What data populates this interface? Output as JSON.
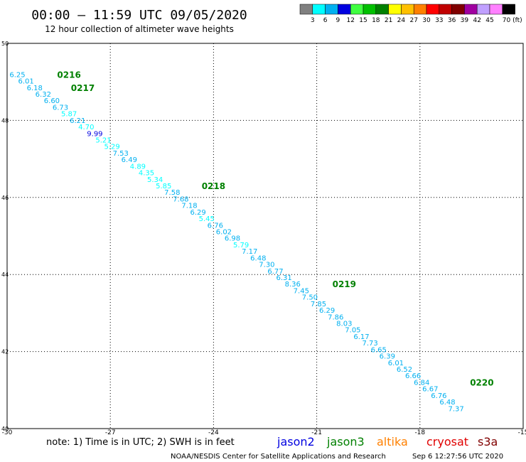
{
  "header": {
    "title": "00:00 – 11:59 UTC 09/05/2020",
    "subtitle": "12 hour collection of altimeter wave heights"
  },
  "legend": {
    "labels": [
      "3",
      "6",
      "9",
      "12",
      "15",
      "18",
      "21",
      "24",
      "27",
      "30",
      "33",
      "36",
      "39",
      "42",
      "45",
      "70 (ft)"
    ],
    "colors": [
      "#808080",
      "#00ffff",
      "#00b0f0",
      "#0000e0",
      "#40ff40",
      "#00c000",
      "#008000",
      "#ffff00",
      "#ffc000",
      "#ff8000",
      "#ff0000",
      "#c00000",
      "#800000",
      "#a000a0",
      "#c0a0ff",
      "#ff80ff",
      "#000000"
    ]
  },
  "footer": {
    "note": "note: 1) Time is in UTC; 2) SWH is in feet",
    "satellites": [
      {
        "name": "jason2",
        "color": "#0000e0"
      },
      {
        "name": "jason3",
        "color": "#008000"
      },
      {
        "name": "altika",
        "color": "#ff8000"
      },
      {
        "name": "cryosat",
        "color": "#e00000"
      },
      {
        "name": "s3a",
        "color": "#800000"
      }
    ],
    "credit": "NOAA/NESDIS Center for Satellite Applications and Research",
    "timestamp": "Sep  6 12:27:56 UTC 2020"
  },
  "chart_data": {
    "type": "scatter",
    "xlim": [
      -30,
      -15
    ],
    "ylim": [
      40,
      50
    ],
    "x_ticks": [
      "-30",
      "-27",
      "-24",
      "-21",
      "-18",
      "-15"
    ],
    "y_ticks": [
      "40",
      "42",
      "44",
      "46",
      "48",
      "50"
    ],
    "grid": true,
    "points": [
      {
        "lon": -29.7,
        "lat": 49.2,
        "v": "6.25",
        "c": "#00b0f0"
      },
      {
        "lon": -29.45,
        "lat": 49.03,
        "v": "6.01",
        "c": "#00b0f0"
      },
      {
        "lon": -29.2,
        "lat": 48.86,
        "v": "6.18",
        "c": "#00b0f0"
      },
      {
        "lon": -28.95,
        "lat": 48.69,
        "v": "6.32",
        "c": "#00b0f0"
      },
      {
        "lon": -28.7,
        "lat": 48.52,
        "v": "6.60",
        "c": "#00b0f0"
      },
      {
        "lon": -28.45,
        "lat": 48.35,
        "v": "6.73",
        "c": "#00b0f0"
      },
      {
        "lon": -28.2,
        "lat": 48.18,
        "v": "5.87",
        "c": "#00ffff"
      },
      {
        "lon": -27.95,
        "lat": 48.01,
        "v": "6.21",
        "c": "#00b0f0"
      },
      {
        "lon": -27.7,
        "lat": 47.84,
        "v": "4.70",
        "c": "#00ffff"
      },
      {
        "lon": -27.45,
        "lat": 47.67,
        "v": "9.99",
        "c": "#0000e0"
      },
      {
        "lon": -27.2,
        "lat": 47.5,
        "v": "5.21",
        "c": "#00ffff"
      },
      {
        "lon": -26.95,
        "lat": 47.33,
        "v": "5.29",
        "c": "#00ffff"
      },
      {
        "lon": -26.7,
        "lat": 47.16,
        "v": "7.53",
        "c": "#00b0f0"
      },
      {
        "lon": -26.45,
        "lat": 46.99,
        "v": "6.49",
        "c": "#00b0f0"
      },
      {
        "lon": -26.2,
        "lat": 46.82,
        "v": "4.89",
        "c": "#00ffff"
      },
      {
        "lon": -25.95,
        "lat": 46.65,
        "v": "4.35",
        "c": "#00ffff"
      },
      {
        "lon": -25.7,
        "lat": 46.48,
        "v": "5.34",
        "c": "#00ffff"
      },
      {
        "lon": -25.45,
        "lat": 46.31,
        "v": "5.85",
        "c": "#00ffff"
      },
      {
        "lon": -25.2,
        "lat": 46.14,
        "v": "7.58",
        "c": "#00b0f0"
      },
      {
        "lon": -24.95,
        "lat": 45.97,
        "v": "7.68",
        "c": "#00b0f0"
      },
      {
        "lon": -24.7,
        "lat": 45.8,
        "v": "7.18",
        "c": "#00b0f0"
      },
      {
        "lon": -24.45,
        "lat": 45.63,
        "v": "6.29",
        "c": "#00b0f0"
      },
      {
        "lon": -24.2,
        "lat": 45.46,
        "v": "5.45",
        "c": "#00ffff"
      },
      {
        "lon": -23.95,
        "lat": 45.29,
        "v": "6.76",
        "c": "#00b0f0"
      },
      {
        "lon": -23.7,
        "lat": 45.12,
        "v": "6.02",
        "c": "#00b0f0"
      },
      {
        "lon": -23.45,
        "lat": 44.95,
        "v": "6.98",
        "c": "#00b0f0"
      },
      {
        "lon": -23.2,
        "lat": 44.78,
        "v": "5.79",
        "c": "#00ffff"
      },
      {
        "lon": -22.95,
        "lat": 44.61,
        "v": "7.17",
        "c": "#00b0f0"
      },
      {
        "lon": -22.7,
        "lat": 44.44,
        "v": "6.48",
        "c": "#00b0f0"
      },
      {
        "lon": -22.45,
        "lat": 44.27,
        "v": "7.30",
        "c": "#00b0f0"
      },
      {
        "lon": -22.2,
        "lat": 44.1,
        "v": "6.77",
        "c": "#00b0f0"
      },
      {
        "lon": -21.95,
        "lat": 43.93,
        "v": "6.31",
        "c": "#00b0f0"
      },
      {
        "lon": -21.7,
        "lat": 43.76,
        "v": "8.36",
        "c": "#00b0f0"
      },
      {
        "lon": -21.45,
        "lat": 43.59,
        "v": "7.45",
        "c": "#00b0f0"
      },
      {
        "lon": -21.2,
        "lat": 43.42,
        "v": "7.50",
        "c": "#00b0f0"
      },
      {
        "lon": -20.95,
        "lat": 43.25,
        "v": "7.85",
        "c": "#00b0f0"
      },
      {
        "lon": -20.7,
        "lat": 43.08,
        "v": "6.29",
        "c": "#00b0f0"
      },
      {
        "lon": -20.45,
        "lat": 42.91,
        "v": "7.86",
        "c": "#00b0f0"
      },
      {
        "lon": -20.2,
        "lat": 42.74,
        "v": "8.03",
        "c": "#00b0f0"
      },
      {
        "lon": -19.95,
        "lat": 42.57,
        "v": "7.05",
        "c": "#00b0f0"
      },
      {
        "lon": -19.7,
        "lat": 42.4,
        "v": "6.17",
        "c": "#00b0f0"
      },
      {
        "lon": -19.45,
        "lat": 42.23,
        "v": "7.73",
        "c": "#00b0f0"
      },
      {
        "lon": -19.2,
        "lat": 42.06,
        "v": "6.65",
        "c": "#00b0f0"
      },
      {
        "lon": -18.95,
        "lat": 41.89,
        "v": "6.39",
        "c": "#00b0f0"
      },
      {
        "lon": -18.7,
        "lat": 41.72,
        "v": "6.01",
        "c": "#00b0f0"
      },
      {
        "lon": -18.45,
        "lat": 41.55,
        "v": "6.52",
        "c": "#00b0f0"
      },
      {
        "lon": -18.2,
        "lat": 41.38,
        "v": "6.66",
        "c": "#00b0f0"
      },
      {
        "lon": -17.95,
        "lat": 41.21,
        "v": "6.84",
        "c": "#00b0f0"
      },
      {
        "lon": -17.7,
        "lat": 41.04,
        "v": "6.67",
        "c": "#00b0f0"
      },
      {
        "lon": -17.45,
        "lat": 40.87,
        "v": "6.76",
        "c": "#00b0f0"
      },
      {
        "lon": -17.2,
        "lat": 40.7,
        "v": "6.48",
        "c": "#00b0f0"
      },
      {
        "lon": -16.95,
        "lat": 40.53,
        "v": "7.37",
        "c": "#00b0f0"
      }
    ],
    "time_labels": [
      {
        "lon": -28.2,
        "lat": 49.2,
        "text": "0216"
      },
      {
        "lon": -27.8,
        "lat": 48.86,
        "text": "0217"
      },
      {
        "lon": -24.0,
        "lat": 46.31,
        "text": "0218"
      },
      {
        "lon": -20.2,
        "lat": 43.76,
        "text": "0219"
      },
      {
        "lon": -16.2,
        "lat": 41.21,
        "text": "0220"
      }
    ],
    "time_label_color": "#008000"
  }
}
